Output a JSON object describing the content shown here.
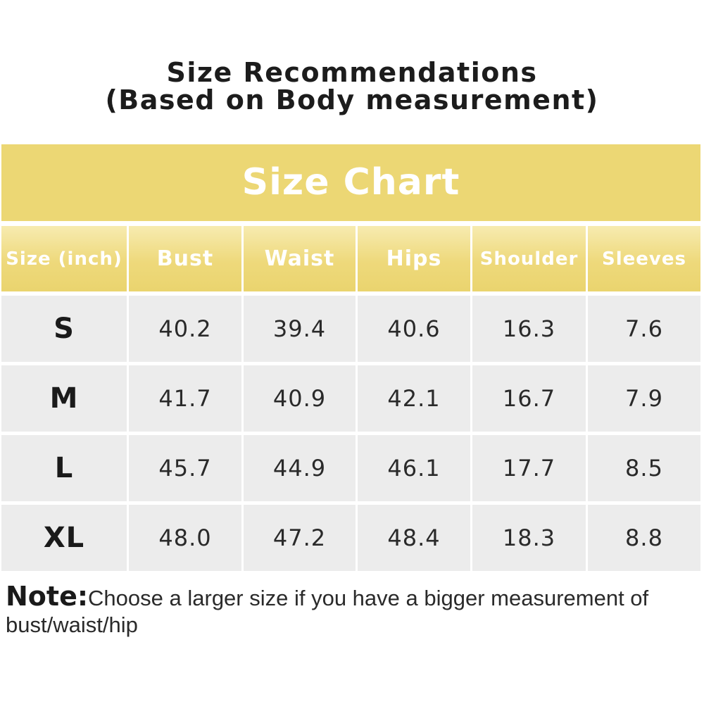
{
  "heading": {
    "line1": "Size Recommendations",
    "line2": "(Based on Body measurement)"
  },
  "chart_title": "Size Chart",
  "table": {
    "columns": [
      "Size (inch)",
      "Bust",
      "Waist",
      "Hips",
      "Shoulder",
      "Sleeves"
    ],
    "rows": [
      [
        "S",
        "40.2",
        "39.4",
        "40.6",
        "16.3",
        "7.6"
      ],
      [
        "M",
        "41.7",
        "40.9",
        "42.1",
        "16.7",
        "7.9"
      ],
      [
        "L",
        "45.7",
        "44.9",
        "46.1",
        "17.7",
        "8.5"
      ],
      [
        "XL",
        "48.0",
        "47.2",
        "48.4",
        "18.3",
        "8.8"
      ]
    ]
  },
  "note": {
    "label": "Note:",
    "text": "Choose a larger size if you have a bigger measurement of bust/waist/hip"
  },
  "colors": {
    "header_yellow": "#ecd774",
    "cell_gray": "#ececec",
    "header_text": "#ffffff"
  }
}
